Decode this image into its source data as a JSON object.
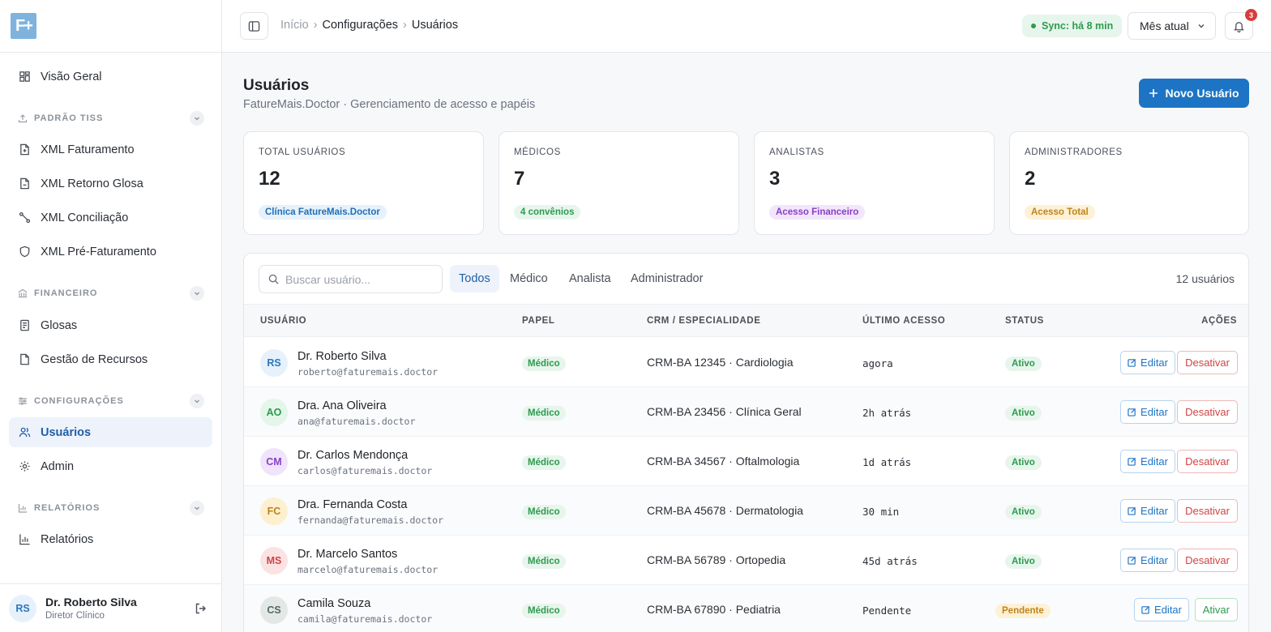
{
  "app": {
    "logo_text": "F+"
  },
  "sidebar": {
    "overview": "Visão Geral",
    "sections": {
      "tiss": "PADRÃO TISS",
      "financeiro": "FINANCEIRO",
      "config": "CONFIGURAÇÕES",
      "relatorios": "RELATÓRIOS"
    },
    "items": {
      "xml_faturamento": "XML Faturamento",
      "xml_retorno": "XML Retorno Glosa",
      "xml_conciliacao": "XML Conciliação",
      "xml_pre": "XML Pré-Faturamento",
      "glosas": "Glosas",
      "recursos": "Gestão de Recursos",
      "usuarios": "Usuários",
      "admin": "Admin",
      "relatorios": "Relatórios"
    },
    "user": {
      "initials": "RS",
      "name": "Dr. Roberto Silva",
      "role": "Diretor Clínico"
    }
  },
  "topbar": {
    "breadcrumb": [
      "Início",
      "Configurações",
      "Usuários"
    ],
    "sync": "Sync: há 8 min",
    "period": "Mês atual",
    "notifications": "3"
  },
  "page": {
    "title": "Usuários",
    "subtitle": "FatureMais.Doctor · Gerenciamento de acesso e papéis",
    "new_button": "Novo Usuário"
  },
  "stats": [
    {
      "label": "TOTAL USUÁRIOS",
      "value": "12",
      "tag": "Clínica FatureMais.Doctor",
      "tag_bg": "#e7f1fb",
      "tag_color": "#1f6fb8"
    },
    {
      "label": "MÉDICOS",
      "value": "7",
      "tag": "4 convênios",
      "tag_bg": "#e7f6ec",
      "tag_color": "#2e9a4f"
    },
    {
      "label": "ANALISTAS",
      "value": "3",
      "tag": "Acesso Financeiro",
      "tag_bg": "#f1e6fb",
      "tag_color": "#8a3fc4"
    },
    {
      "label": "ADMINISTRADORES",
      "value": "2",
      "tag": "Acesso Total",
      "tag_bg": "#fdf1d6",
      "tag_color": "#c0831b"
    }
  ],
  "table": {
    "search_placeholder": "Buscar usuário...",
    "filters": [
      "Todos",
      "Médico",
      "Analista",
      "Administrador"
    ],
    "count": "12 usuários",
    "headers": [
      "USUÁRIO",
      "PAPEL",
      "CRM / ESPECIALIDADE",
      "ÚLTIMO ACESSO",
      "STATUS",
      "AÇÕES"
    ],
    "edit_label": "Editar",
    "rows": [
      {
        "initials": "RS",
        "avatar_bg": "#e7f1fb",
        "avatar_color": "#2a76bd",
        "name": "Dr. Roberto Silva",
        "email": "roberto@faturemais.doctor",
        "role": "Médico",
        "crm": "CRM-BA 12345 · Cardiologia",
        "access": "agora",
        "status": "Ativo",
        "action": "Desativar"
      },
      {
        "initials": "AO",
        "avatar_bg": "#e3f6e9",
        "avatar_color": "#2e9a4f",
        "name": "Dra. Ana Oliveira",
        "email": "ana@faturemais.doctor",
        "role": "Médico",
        "crm": "CRM-BA 23456 · Clínica Geral",
        "access": "2h atrás",
        "status": "Ativo",
        "action": "Desativar"
      },
      {
        "initials": "CM",
        "avatar_bg": "#efe4fb",
        "avatar_color": "#8a3fc4",
        "name": "Dr. Carlos Mendonça",
        "email": "carlos@faturemais.doctor",
        "role": "Médico",
        "crm": "CRM-BA 34567 · Oftalmologia",
        "access": "1d atrás",
        "status": "Ativo",
        "action": "Desativar"
      },
      {
        "initials": "FC",
        "avatar_bg": "#fdf0cf",
        "avatar_color": "#c0831b",
        "name": "Dra. Fernanda Costa",
        "email": "fernanda@faturemais.doctor",
        "role": "Médico",
        "crm": "CRM-BA 45678 · Dermatologia",
        "access": "30 min",
        "status": "Ativo",
        "action": "Desativar"
      },
      {
        "initials": "MS",
        "avatar_bg": "#fbe3e3",
        "avatar_color": "#d14343",
        "name": "Dr. Marcelo Santos",
        "email": "marcelo@faturemais.doctor",
        "role": "Médico",
        "crm": "CRM-BA 56789 · Ortopedia",
        "access": "45d atrás",
        "status": "Ativo",
        "action": "Desativar"
      },
      {
        "initials": "CS",
        "avatar_bg": "#e3e8e6",
        "avatar_color": "#4f6b60",
        "name": "Camila Souza",
        "email": "camila@faturemais.doctor",
        "role": "Médico",
        "crm": "CRM-BA 67890 · Pediatria",
        "access": "Pendente",
        "status": "Pendente",
        "action": "Ativar"
      }
    ]
  }
}
